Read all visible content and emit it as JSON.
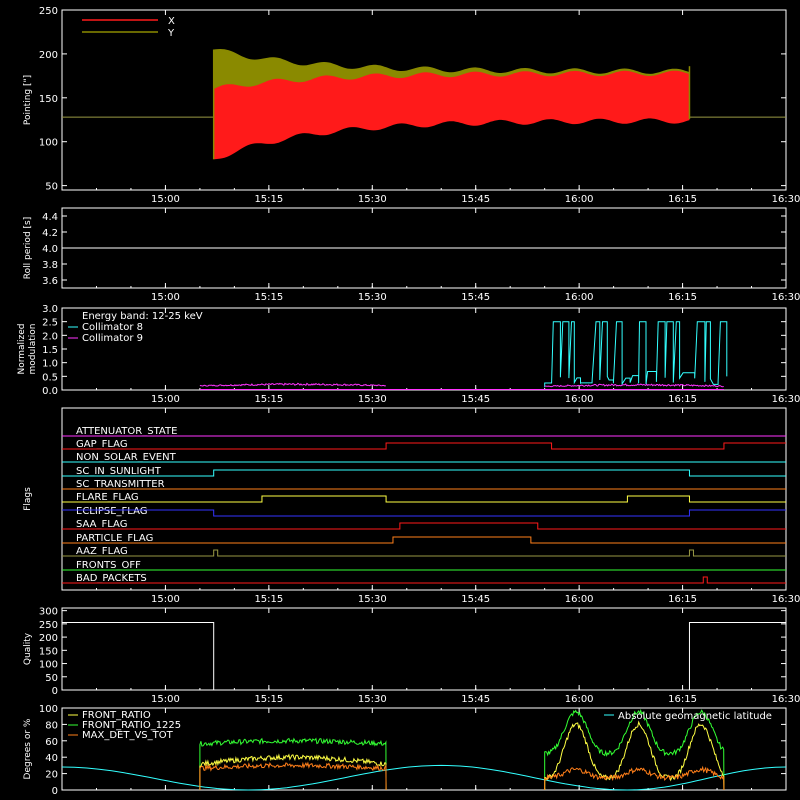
{
  "colors": {
    "background": "#000000",
    "axis": "#ffffff",
    "x_series": "#ff1a1a",
    "y_series": "#8a8a00",
    "center_line": "#999944",
    "cyan": "#33ffff",
    "magenta": "#ff33ff",
    "red": "#ff1a1a",
    "orange": "#ff7f1a",
    "yellow": "#ffff44",
    "green": "#33ff33",
    "blue": "#3333ff",
    "olive": "#999944"
  },
  "chart_data": [
    {
      "id": "pointing",
      "type": "area",
      "ylabel": "Pointing [\"]",
      "ylim": [
        45,
        250
      ],
      "yticks": [
        50,
        100,
        150,
        200,
        250
      ],
      "xlim": [
        "14:45",
        "16:30"
      ],
      "xticks": [
        "15:00",
        "15:15",
        "15:30",
        "15:45",
        "16:00",
        "16:15",
        "16:30"
      ],
      "center_value": 128,
      "active_range": [
        "15:07",
        "16:16"
      ],
      "legend": [
        {
          "name": "X",
          "color": "#ff1a1a"
        },
        {
          "name": "Y",
          "color": "#8a8a00"
        }
      ],
      "series": [
        {
          "name": "Y",
          "band_start": [
            120,
            205
          ],
          "band_end": [
            128,
            180
          ]
        },
        {
          "name": "X",
          "band_start": [
            80,
            160
          ],
          "band_end": [
            124,
            178
          ]
        }
      ]
    },
    {
      "id": "roll_period",
      "type": "line",
      "ylabel": "Roll period [s]",
      "ylim": [
        3.5,
        4.5
      ],
      "yticks": [
        "3.6",
        "3.8",
        "4.0",
        "4.2",
        "4.4"
      ],
      "xticks": [
        "15:00",
        "15:15",
        "15:30",
        "15:45",
        "16:00",
        "16:15",
        "16:30"
      ],
      "series": [
        {
          "name": "roll",
          "value": 4.0
        }
      ]
    },
    {
      "id": "modulation",
      "type": "line",
      "ylabel": "Normalized modulation",
      "ylabel_lines": [
        "Normalized",
        "modulation"
      ],
      "ylim": [
        0,
        3
      ],
      "yticks": [
        "0.0",
        "0.5",
        "1.0",
        "1.5",
        "2.0",
        "2.5",
        "3.0"
      ],
      "xticks": [
        "15:00",
        "15:15",
        "15:30",
        "15:45",
        "16:00",
        "16:15",
        "16:30"
      ],
      "legend": [
        {
          "name": "Energy band: 12-25 keV",
          "color": "#ffffff"
        },
        {
          "name": "Collimator 8",
          "color": "#33ffff"
        },
        {
          "name": "Collimator 9",
          "color": "#ff33ff"
        }
      ],
      "series": [
        {
          "name": "Collimator 8",
          "segments": [
            [
              "15:55",
              "16:21",
              0.2,
              2.5
            ]
          ]
        },
        {
          "name": "Collimator 9",
          "segments": [
            [
              "15:05",
              "15:32",
              0.1,
              0.22
            ],
            [
              "15:55",
              "16:21",
              0.08,
              0.2
            ]
          ]
        }
      ]
    },
    {
      "id": "flags",
      "type": "line",
      "ylabel": "Flags",
      "xticks": [
        "15:00",
        "15:15",
        "15:30",
        "15:45",
        "16:00",
        "16:15",
        "16:30"
      ],
      "series": [
        {
          "name": "ATTENUATOR_STATE",
          "color": "#ff33ff",
          "steps": []
        },
        {
          "name": "GAP_FLAG",
          "color": "#ff1a1a",
          "steps": [
            "15:32",
            "15:56",
            "16:21"
          ]
        },
        {
          "name": "NON_SOLAR_EVENT",
          "color": "#33ffff",
          "steps": []
        },
        {
          "name": "SC_IN_SUNLIGHT",
          "color": "#33ffff",
          "steps": [
            "15:07",
            "16:16"
          ]
        },
        {
          "name": "SC_TRANSMITTER",
          "color": "#ff7f1a",
          "steps": []
        },
        {
          "name": "FLARE_FLAG",
          "color": "#ffff44",
          "steps": [
            "15:14",
            "15:32",
            "16:07",
            "16:16"
          ]
        },
        {
          "name": "ECLIPSE_FLAG",
          "color": "#3333ff",
          "steps": [
            "15:07",
            "16:16"
          ]
        },
        {
          "name": "SAA_FLAG",
          "color": "#ff1a1a",
          "steps": [
            "15:34",
            "15:54"
          ]
        },
        {
          "name": "PARTICLE_FLAG",
          "color": "#ff7f1a",
          "steps": [
            "15:33",
            "15:53"
          ]
        },
        {
          "name": "AAZ_FLAG",
          "color": "#999944",
          "pulses": [
            "15:07",
            "16:16"
          ]
        },
        {
          "name": "FRONTS_OFF",
          "color": "#33ff33",
          "steps": []
        },
        {
          "name": "BAD_PACKETS",
          "color": "#ff1a1a",
          "pulses": [
            "16:18"
          ]
        }
      ]
    },
    {
      "id": "quality",
      "type": "line",
      "ylabel": "Quality",
      "ylim": [
        0,
        310
      ],
      "yticks": [
        0,
        50,
        100,
        150,
        200,
        250,
        300
      ],
      "xticks": [
        "15:00",
        "15:15",
        "15:30",
        "15:45",
        "16:00",
        "16:15",
        "16:30"
      ],
      "series": [
        {
          "name": "quality",
          "high": 255,
          "low": 0,
          "low_range": [
            "15:07",
            "16:16"
          ]
        }
      ]
    },
    {
      "id": "ratios",
      "type": "line",
      "ylabel": "Degrees or %",
      "ylim": [
        0,
        100
      ],
      "yticks": [
        0,
        20,
        40,
        60,
        80,
        100
      ],
      "xticks": [
        "15:00",
        "15:15",
        "15:30",
        "15:45",
        "16:00",
        "16:15",
        "16:30"
      ],
      "legend": [
        {
          "name": "FRONT_RATIO",
          "color": "#ffff44"
        },
        {
          "name": "FRONT_RATIO_1225",
          "color": "#33ff33"
        },
        {
          "name": "MAX_DET_VS_TOT",
          "color": "#ff7f1a"
        },
        {
          "name": "Absolute geomagnetic latitude",
          "color": "#33ffff"
        }
      ],
      "series": [
        {
          "name": "FRONT_RATIO_1225",
          "segments": [
            [
              "15:05",
              "15:32",
              55,
              60
            ],
            [
              "15:55",
              "16:21",
              45,
              95
            ]
          ]
        },
        {
          "name": "FRONT_RATIO",
          "segments": [
            [
              "15:05",
              "15:32",
              28,
              40
            ],
            [
              "15:55",
              "16:21",
              15,
              80
            ]
          ]
        },
        {
          "name": "MAX_DET_VS_TOT",
          "segments": [
            [
              "15:05",
              "15:32",
              25,
              30
            ],
            [
              "15:55",
              "16:21",
              15,
              25
            ]
          ]
        },
        {
          "name": "Absolute geomagnetic latitude",
          "peaks": [
            [
              "14:45",
              28
            ],
            [
              "15:12",
              0
            ],
            [
              "15:40",
              30
            ],
            [
              "16:07",
              0
            ],
            [
              "16:30",
              28
            ]
          ]
        }
      ]
    }
  ]
}
